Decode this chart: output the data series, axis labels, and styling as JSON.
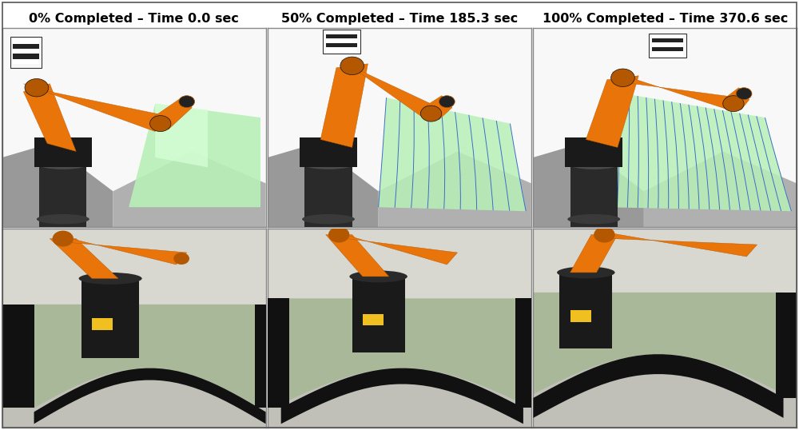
{
  "titles": [
    "0% Completed – Time 0.0 sec",
    "50% Completed – Time 185.3 sec",
    "100% Completed – Time 370.6 sec"
  ],
  "figsize": [
    10.0,
    5.38
  ],
  "dpi": 100,
  "title_fontsize": 11.5,
  "title_fontweight": "bold",
  "background_color": "#ffffff",
  "border_color": "#888888",
  "border_linewidth": 1.0,
  "sim_bg": "#f0f0f0",
  "real_bg": "#888070",
  "panel_colors": {
    "sim_0": {
      "bg": "#f8f8f8",
      "green": "#90ee90",
      "gray1": "#a0a0a0",
      "gray2": "#b8b8b8"
    },
    "sim_1": {
      "bg": "#f8f8f8",
      "green": "#90ee90",
      "gray1": "#a0a0a0",
      "gray2": "#b8b8b8"
    },
    "sim_2": {
      "bg": "#f8f8f8",
      "green": "#90ee90",
      "gray1": "#a0a0a0",
      "gray2": "#b8b8b8"
    },
    "real_bg": "#7a8a7a",
    "real_floor": "#d0d0c0",
    "real_black_part": "#1a1a1a",
    "real_green_surface": "#9aaa88",
    "orange": "#e8740a",
    "dark_orange": "#b35800",
    "robot_dark": "#1a1a1a",
    "robot_mid": "#3a3a3a",
    "robot_light": "#666666",
    "yellow_label": "#f0c020",
    "white": "#ffffff",
    "scan_blue": "#3060cc"
  }
}
